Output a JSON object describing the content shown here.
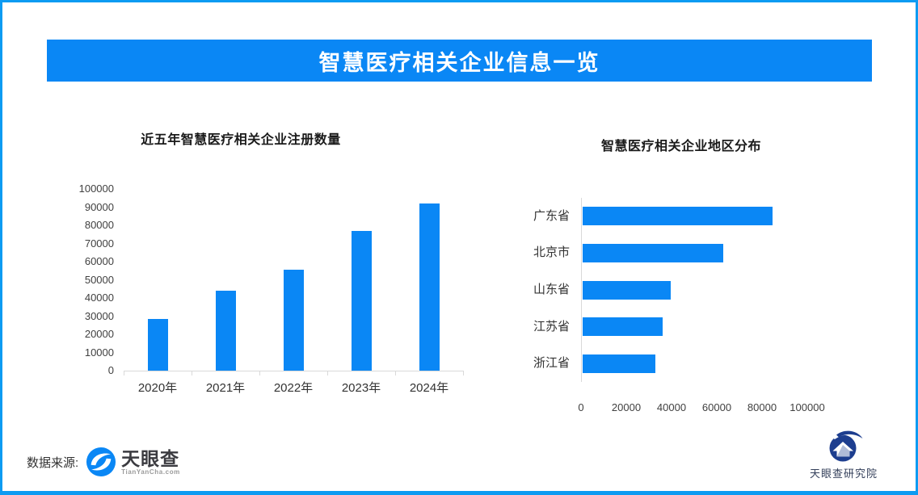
{
  "frame": {
    "border_color": "#0d9bf2"
  },
  "header": {
    "title": "智慧医疗相关企业信息一览",
    "bg_color": "#0a87f5",
    "text_color": "#ffffff"
  },
  "chart_data": [
    {
      "type": "bar",
      "orientation": "vertical",
      "title": "近五年智慧医疗相关企业注册数量",
      "categories": [
        "2020年",
        "2021年",
        "2022年",
        "2023年",
        "2024年"
      ],
      "values": [
        28500,
        44000,
        55500,
        77000,
        92000
      ],
      "ylim": [
        0,
        100000
      ],
      "yticks": [
        "0",
        "10000",
        "20000",
        "30000",
        "40000",
        "50000",
        "60000",
        "70000",
        "80000",
        "90000",
        "100000"
      ],
      "bar_color": "#0a87f5",
      "grid": false,
      "legend": "none"
    },
    {
      "type": "bar",
      "orientation": "horizontal",
      "title": "智慧医疗相关企业地区分布",
      "categories": [
        "广东省",
        "北京市",
        "山东省",
        "江苏省",
        "浙江省"
      ],
      "values": [
        84000,
        62000,
        39000,
        35500,
        32000
      ],
      "xlim": [
        0,
        100000
      ],
      "xticks": [
        "0",
        "20000",
        "40000",
        "60000",
        "80000",
        "100000"
      ],
      "bar_color": "#0a87f5",
      "grid": false,
      "legend": "none"
    }
  ],
  "footer": {
    "source_label": "数据来源:",
    "tyc_logo": {
      "name": "天眼查",
      "subtext": "TianYanCha.com",
      "icon_color": "#0a87f5"
    },
    "research_logo": {
      "label": "天眼查研究院",
      "icon_color": "#1d3e8f"
    }
  }
}
